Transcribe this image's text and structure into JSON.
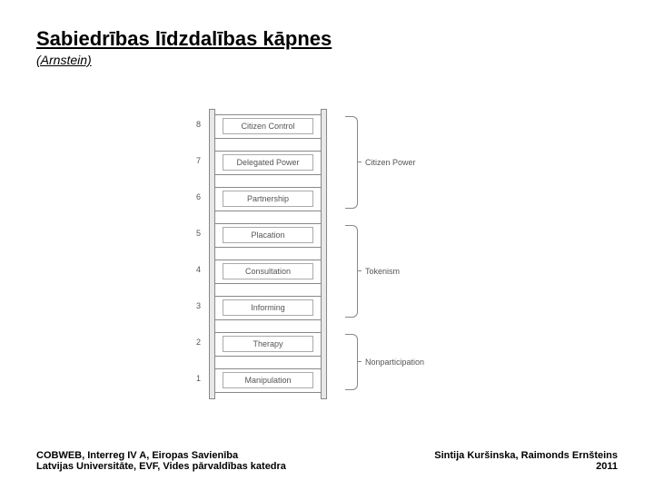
{
  "title": "Sabiedrības līdzdalības kāpnes",
  "subtitle": "(Arnstein)",
  "ladder": {
    "rail_color": "#e8e8e8",
    "rail_border": "#888888",
    "rungs": [
      {
        "n": "8",
        "label": "Citizen Control"
      },
      {
        "n": "7",
        "label": "Delegated Power"
      },
      {
        "n": "6",
        "label": "Partnership"
      },
      {
        "n": "5",
        "label": "Placation"
      },
      {
        "n": "4",
        "label": "Consultation"
      },
      {
        "n": "3",
        "label": "Informing"
      },
      {
        "n": "2",
        "label": "Therapy"
      },
      {
        "n": "1",
        "label": "Manipulation"
      }
    ],
    "groups": [
      {
        "label": "Citizen Power",
        "from": 0,
        "to": 2
      },
      {
        "label": "Tokenism",
        "from": 3,
        "to": 5
      },
      {
        "label": "Nonparticipation",
        "from": 6,
        "to": 7
      }
    ]
  },
  "footer": {
    "left_line1": "COBWEB, Interreg IV A, Eiropas Savienība",
    "left_line2": "Latvijas Universitāte, EVF, Vides pārvaldības katedra",
    "right_line1": "Sintija Kuršinska, Raimonds Ernšteins",
    "right_line2": "2011"
  }
}
